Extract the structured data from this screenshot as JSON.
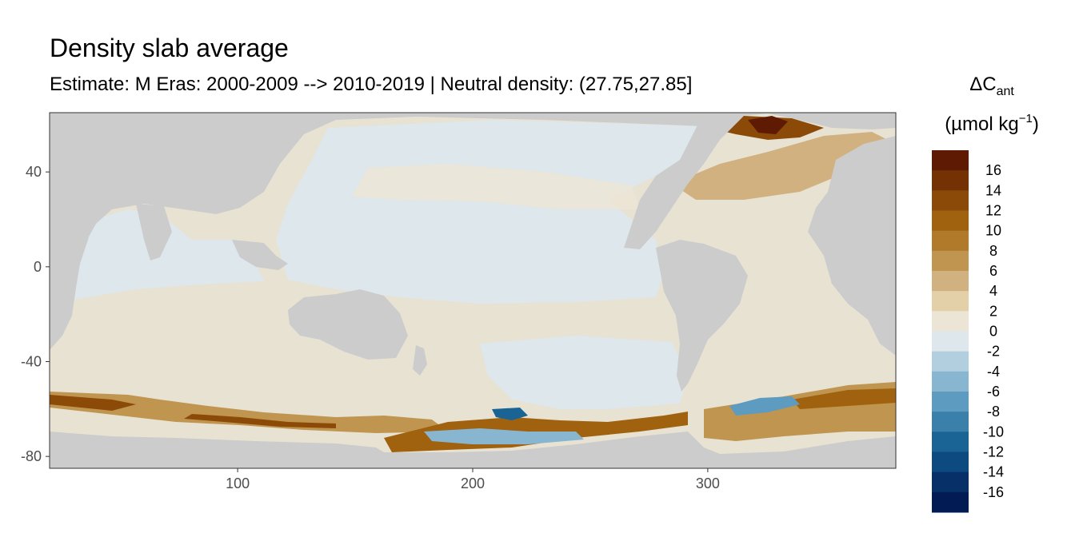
{
  "chart_data": {
    "type": "heatmap",
    "title": "Density slab average",
    "subtitle": "Estimate: M Eras: 2000-2009 --> 2010-2019 | Neutral density: (27.75,27.85]",
    "xlim": [
      20,
      380
    ],
    "ylim": [
      -85,
      65
    ],
    "x_ticks": [
      100,
      200,
      300
    ],
    "y_ticks": [
      40,
      0,
      -40,
      -80
    ],
    "grid": false,
    "legend": {
      "placement": "right",
      "title_main": "ΔC",
      "title_sub": "ant",
      "unit_pre": "(µmol kg",
      "unit_sup": "−1",
      "unit_post": ")",
      "labels": [
        "16",
        "14",
        "12",
        "10",
        "8",
        "6",
        "4",
        "2",
        "0",
        "-2",
        "-4",
        "-6",
        "-8",
        "-10",
        "-12",
        "-14",
        "-16"
      ],
      "colors": [
        "#5e1a03",
        "#743204",
        "#8b4a08",
        "#a0620f",
        "#b07a2a",
        "#c0954f",
        "#d1b17f",
        "#e3cfa8",
        "#ece5d6",
        "#dde7ec",
        "#b2cfe0",
        "#88b6d1",
        "#5e9bc0",
        "#3b80ab",
        "#1a6395",
        "#0c4a80",
        "#073068",
        "#021b55"
      ]
    },
    "land_color": "#cccccc",
    "missing_color": "#ffffff"
  }
}
